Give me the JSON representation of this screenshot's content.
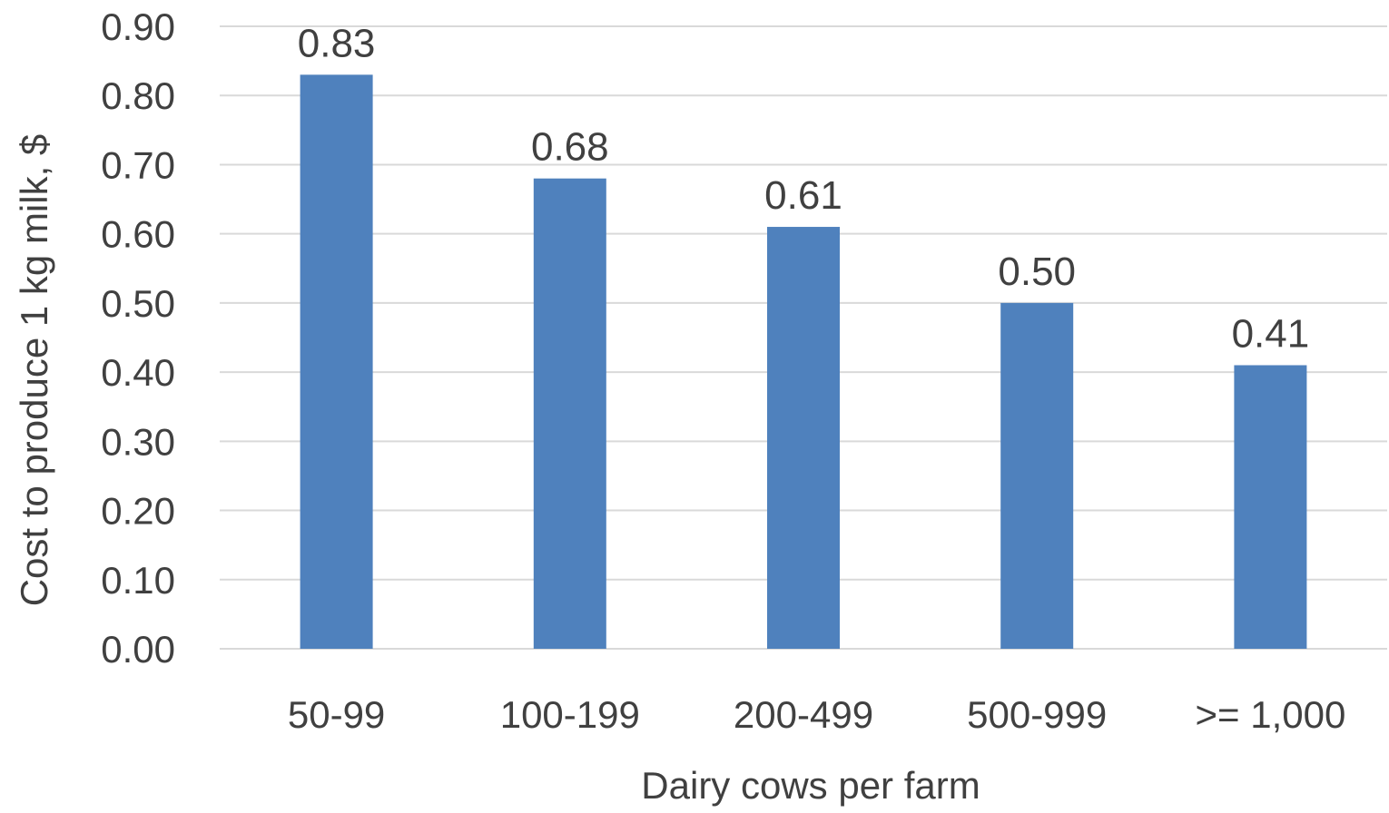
{
  "chart_data": {
    "type": "bar",
    "title": "",
    "xlabel": "Dairy cows per farm",
    "ylabel": "Cost to produce 1 kg milk, $",
    "categories": [
      "50-99",
      "100-199",
      "200-499",
      "500-999",
      ">= 1,000"
    ],
    "values": [
      0.83,
      0.68,
      0.61,
      0.5,
      0.41
    ],
    "data_labels": [
      "0.83",
      "0.68",
      "0.61",
      "0.50",
      "0.41"
    ],
    "ylim": [
      0,
      0.9
    ],
    "yticks": [
      "0.00",
      "0.10",
      "0.20",
      "0.30",
      "0.40",
      "0.50",
      "0.60",
      "0.70",
      "0.80",
      "0.90"
    ],
    "grid": true,
    "legend": "none",
    "bar_color": "#4f81bd"
  }
}
